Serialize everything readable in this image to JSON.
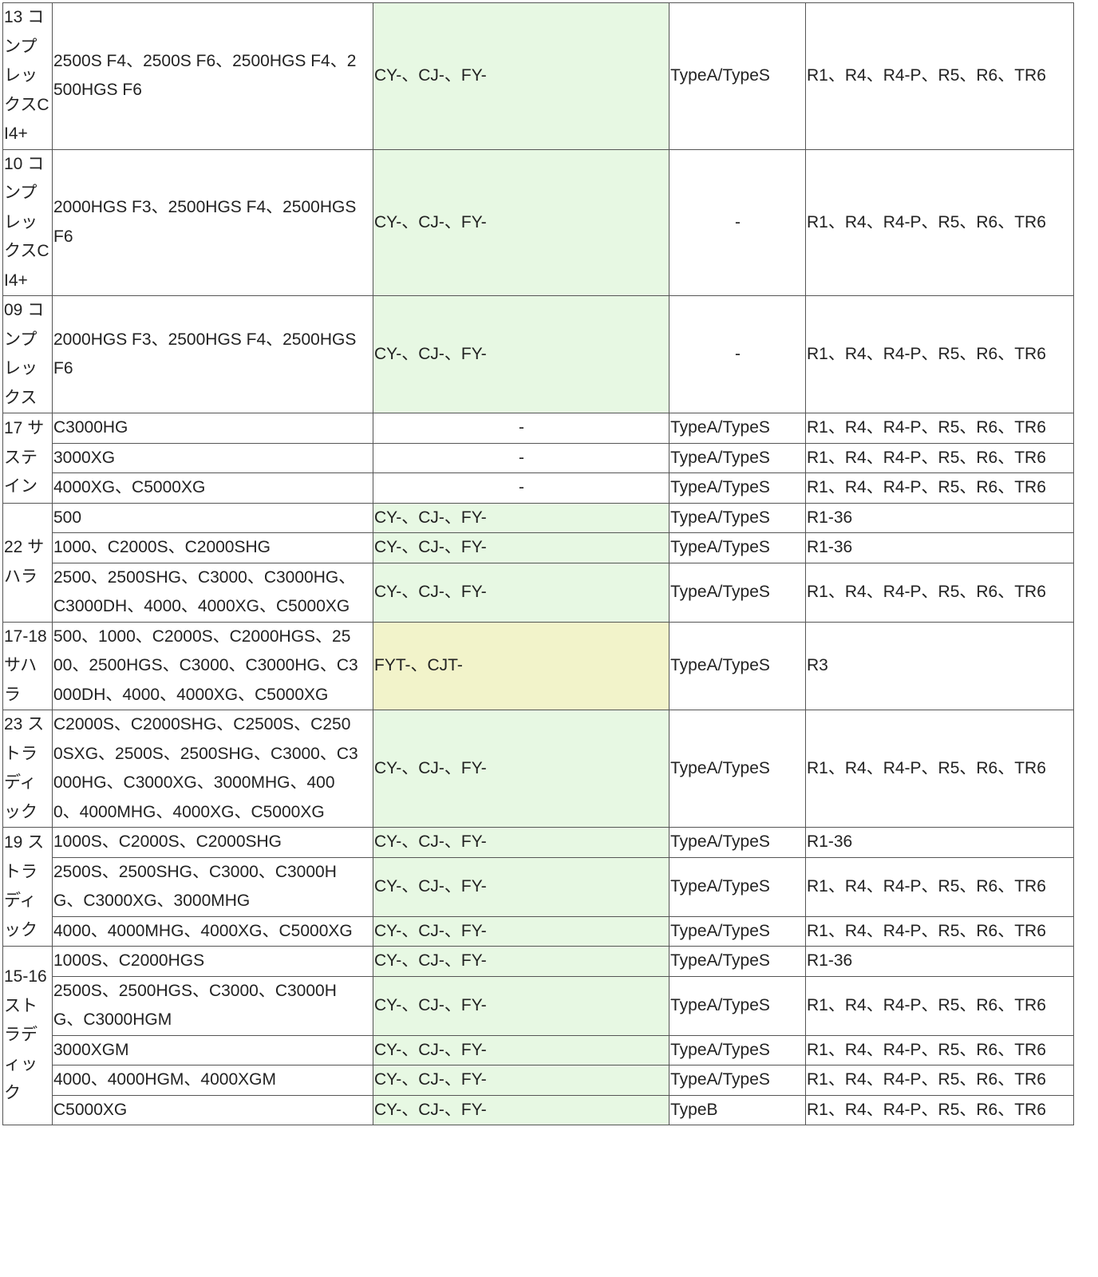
{
  "colors": {
    "green_cell": "#e7f8e3",
    "yellow_cell": "#f2f3ca",
    "border": "#555555"
  },
  "groups": [
    {
      "model": "13 コンプレックスCI4+",
      "rows": [
        {
          "sizes": "2500S F4、2500S F6、2500HGS F4、2500HGS F6",
          "spool": "CY-、CJ-、FY-",
          "spool_color": "green",
          "type": "TypeA/TypeS",
          "handle": "R1、R4、R4-P、R5、R6、TR6"
        }
      ]
    },
    {
      "model": "10 コンプレックスCI4+",
      "rows": [
        {
          "sizes": "2000HGS F3、2500HGS F4、2500HGS F6",
          "spool": "CY-、CJ-、FY-",
          "spool_color": "green",
          "type": "-",
          "handle": "R1、R4、R4-P、R5、R6、TR6"
        }
      ]
    },
    {
      "model": "09 コンプレックス",
      "rows": [
        {
          "sizes": "2000HGS F3、2500HGS F4、2500HGS F6",
          "spool": "CY-、CJ-、FY-",
          "spool_color": "green",
          "type": "-",
          "handle": "R1、R4、R4-P、R5、R6、TR6"
        }
      ]
    },
    {
      "model": "17 サステイン",
      "rows": [
        {
          "sizes": "C3000HG",
          "spool": "-",
          "spool_color": "none",
          "type": "TypeA/TypeS",
          "handle": "R1、R4、R4-P、R5、R6、TR6"
        },
        {
          "sizes": "3000XG",
          "spool": "-",
          "spool_color": "none",
          "type": "TypeA/TypeS",
          "handle": "R1、R4、R4-P、R5、R6、TR6"
        },
        {
          "sizes": "4000XG、C5000XG",
          "spool": "-",
          "spool_color": "none",
          "type": "TypeA/TypeS",
          "handle": "R1、R4、R4-P、R5、R6、TR6"
        }
      ]
    },
    {
      "model": "22 サハラ",
      "rows": [
        {
          "sizes": "500",
          "spool": "CY-、CJ-、FY-",
          "spool_color": "green",
          "type": "TypeA/TypeS",
          "handle": "R1-36"
        },
        {
          "sizes": "1000、C2000S、C2000SHG",
          "spool": "CY-、CJ-、FY-",
          "spool_color": "green",
          "type": "TypeA/TypeS",
          "handle": "R1-36"
        },
        {
          "sizes": "2500、2500SHG、C3000、C3000HG、C3000DH、4000、4000XG、C5000XG",
          "spool": "CY-、CJ-、FY-",
          "spool_color": "green",
          "type": "TypeA/TypeS",
          "handle": "R1、R4、R4-P、R5、R6、TR6"
        }
      ]
    },
    {
      "model": "17-18 サハラ",
      "rows": [
        {
          "sizes": "500、1000、C2000S、C2000HGS、2500、2500HGS、C3000、C3000HG、C3000DH、4000、4000XG、C5000XG",
          "spool": "FYT-、CJT-",
          "spool_color": "yellow",
          "type": "TypeA/TypeS",
          "handle": "R3"
        }
      ]
    },
    {
      "model": "23 ストラディック",
      "rows": [
        {
          "sizes": "C2000S、C2000SHG、C2500S、C2500SXG、2500S、2500SHG、C3000、C3000HG、C3000XG、3000MHG、4000、4000MHG、4000XG、C5000XG",
          "spool": "CY-、CJ-、FY-",
          "spool_color": "green",
          "type": "TypeA/TypeS",
          "handle": "R1、R4、R4-P、R5、R6、TR6"
        }
      ]
    },
    {
      "model": "19 ストラディック",
      "rows": [
        {
          "sizes": "1000S、C2000S、C2000SHG",
          "spool": "CY-、CJ-、FY-",
          "spool_color": "green",
          "type": "TypeA/TypeS",
          "handle": "R1-36"
        },
        {
          "sizes": "2500S、2500SHG、C3000、C3000HG、C3000XG、3000MHG",
          "spool": "CY-、CJ-、FY-",
          "spool_color": "green",
          "type": "TypeA/TypeS",
          "handle": "R1、R4、R4-P、R5、R6、TR6"
        },
        {
          "sizes": "4000、4000MHG、4000XG、C5000XG",
          "spool": "CY-、CJ-、FY-",
          "spool_color": "green",
          "type": "TypeA/TypeS",
          "handle": "R1、R4、R4-P、R5、R6、TR6"
        }
      ]
    },
    {
      "model": "15-16 ストラディック",
      "rows": [
        {
          "sizes": "1000S、C2000HGS",
          "spool": "CY-、CJ-、FY-",
          "spool_color": "green",
          "type": "TypeA/TypeS",
          "handle": "R1-36"
        },
        {
          "sizes": "2500S、2500HGS、C3000、C3000HG、C3000HGM",
          "spool": "CY-、CJ-、FY-",
          "spool_color": "green",
          "type": "TypeA/TypeS",
          "handle": "R1、R4、R4-P、R5、R6、TR6"
        },
        {
          "sizes": "3000XGM",
          "spool": "CY-、CJ-、FY-",
          "spool_color": "green",
          "type": "TypeA/TypeS",
          "handle": "R1、R4、R4-P、R5、R6、TR6"
        },
        {
          "sizes": "4000、4000HGM、4000XGM",
          "spool": "CY-、CJ-、FY-",
          "spool_color": "green",
          "type": "TypeA/TypeS",
          "handle": "R1、R4、R4-P、R5、R6、TR6"
        },
        {
          "sizes": "C5000XG",
          "spool": "CY-、CJ-、FY-",
          "spool_color": "green",
          "type": "TypeB",
          "handle": "R1、R4、R4-P、R5、R6、TR6"
        }
      ]
    }
  ]
}
